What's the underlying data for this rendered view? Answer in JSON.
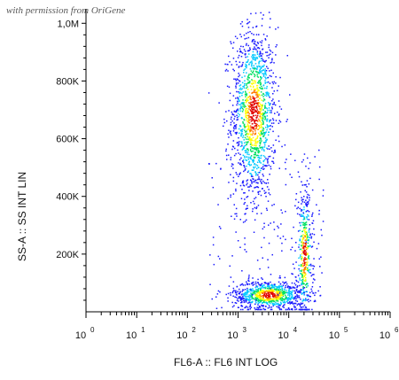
{
  "watermark": "with permission from OriGene",
  "chart_data": {
    "type": "scatter",
    "style": "density-dot-plot",
    "xlabel": "FL6-A :: FL6 INT LOG",
    "ylabel": "SS-A :: SS INT LIN",
    "x_scale": "log",
    "xlim": [
      1,
      1000000
    ],
    "x_ticks": [
      {
        "base": "10",
        "exp": "0"
      },
      {
        "base": "10",
        "exp": "1"
      },
      {
        "base": "10",
        "exp": "2"
      },
      {
        "base": "10",
        "exp": "3"
      },
      {
        "base": "10",
        "exp": "4"
      },
      {
        "base": "10",
        "exp": "5"
      },
      {
        "base": "10",
        "exp": "6"
      }
    ],
    "y_scale": "linear",
    "ylim": [
      0,
      1050000
    ],
    "y_ticks": [
      {
        "value": 200000,
        "label": "200K"
      },
      {
        "value": 400000,
        "label": "400K"
      },
      {
        "value": 600000,
        "label": "600K"
      },
      {
        "value": 800000,
        "label": "800K"
      },
      {
        "value": 1000000,
        "label": "1,0M"
      }
    ],
    "color_scale": [
      "#1a1aff",
      "#00c8ff",
      "#00e060",
      "#ffff00",
      "#ff7a00",
      "#e00000"
    ],
    "populations": [
      {
        "x_center": 2000,
        "x_log_spread": 0.22,
        "y_center": 690000,
        "y_spread": 150000
      },
      {
        "x_center": 4000,
        "x_log_spread": 0.35,
        "y_center": 60000,
        "y_spread": 25000
      },
      {
        "x_center": 20000,
        "x_log_spread": 0.08,
        "y_center": 200000,
        "y_spread": 120000
      }
    ],
    "grid": false
  }
}
